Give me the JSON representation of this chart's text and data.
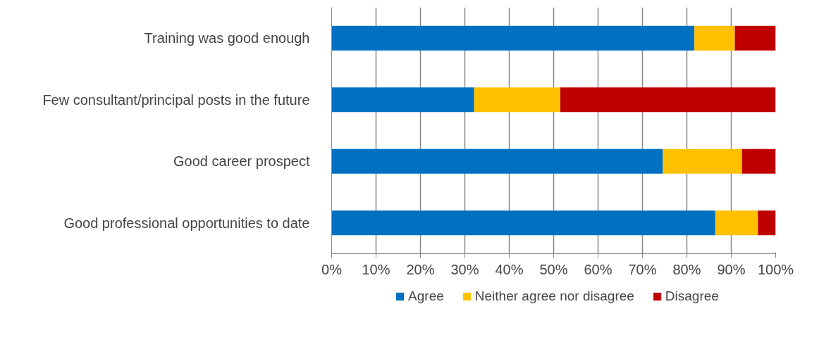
{
  "chart_data": {
    "type": "bar",
    "orientation": "horizontal",
    "stacked": true,
    "categories": [
      "Training was good enough",
      "Few consultant/principal posts in the future",
      "Good career prospect",
      "Good professional opportunities to date"
    ],
    "series": [
      {
        "name": "Agree",
        "color": "#0070c0",
        "values": [
          81.7,
          32.1,
          74.6,
          86.4
        ]
      },
      {
        "name": "Neither agree nor disagree",
        "color": "#ffc000",
        "values": [
          9.1,
          19.4,
          17.8,
          9.6
        ]
      },
      {
        "name": "Disagree",
        "color": "#c00000",
        "values": [
          9.2,
          48.5,
          7.6,
          4.0
        ]
      }
    ],
    "xlim": [
      0,
      100
    ],
    "xticks": [
      {
        "value": 0,
        "label": "0%"
      },
      {
        "value": 10,
        "label": "10%"
      },
      {
        "value": 20,
        "label": "20%"
      },
      {
        "value": 30,
        "label": "30%"
      },
      {
        "value": 40,
        "label": "40%"
      },
      {
        "value": 50,
        "label": "50%"
      },
      {
        "value": 60,
        "label": "60%"
      },
      {
        "value": 70,
        "label": "70%"
      },
      {
        "value": 80,
        "label": "80%"
      },
      {
        "value": 90,
        "label": "90%"
      },
      {
        "value": 100,
        "label": "100%"
      }
    ],
    "grid": "x",
    "legend": "bottom"
  }
}
